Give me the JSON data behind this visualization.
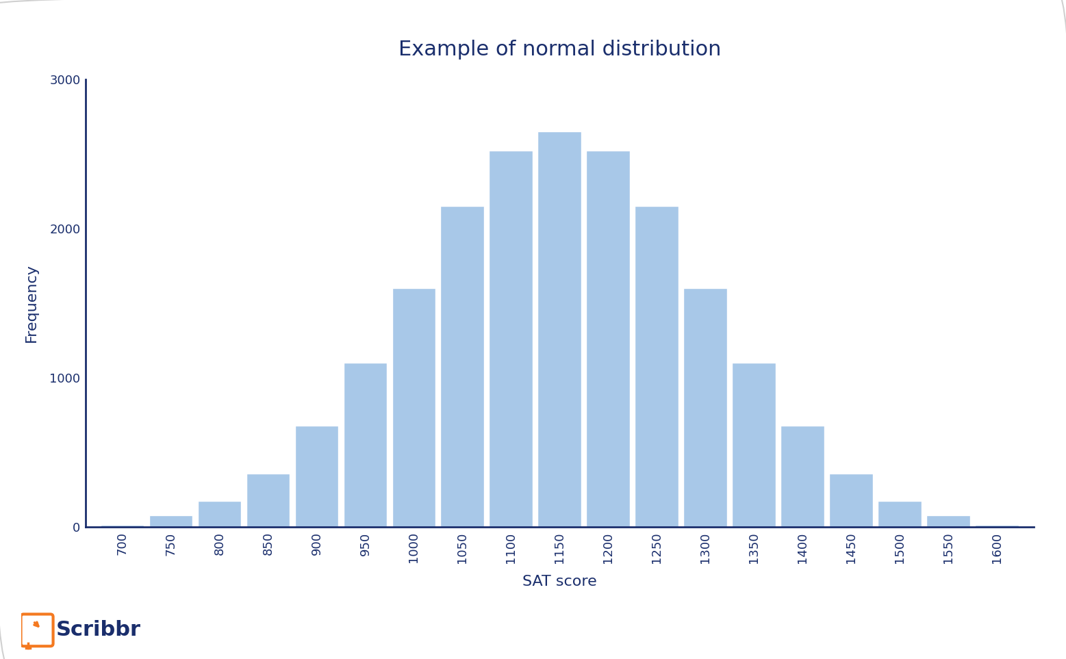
{
  "title": "Example of normal distribution",
  "xlabel": "SAT score",
  "ylabel": "Frequency",
  "bar_color": "#a8c8e8",
  "bar_edgecolor": "#ffffff",
  "axis_color": "#1a2e6c",
  "text_color": "#1a2e6c",
  "background_color": "#ffffff",
  "categories": [
    700,
    750,
    800,
    850,
    900,
    950,
    1000,
    1050,
    1100,
    1150,
    1200,
    1250,
    1300,
    1350,
    1400,
    1450,
    1500,
    1550,
    1600
  ],
  "values": [
    15,
    80,
    175,
    360,
    680,
    1100,
    1600,
    2150,
    2520,
    2650,
    2520,
    2150,
    1600,
    1100,
    680,
    360,
    175,
    80,
    15
  ],
  "ylim": [
    0,
    3000
  ],
  "yticks": [
    0,
    1000,
    2000,
    3000
  ],
  "title_fontsize": 22,
  "label_fontsize": 16,
  "tick_fontsize": 13,
  "bar_width": 1.0,
  "scribbr_color": "#f47920",
  "border_color": "#d0d0d0"
}
